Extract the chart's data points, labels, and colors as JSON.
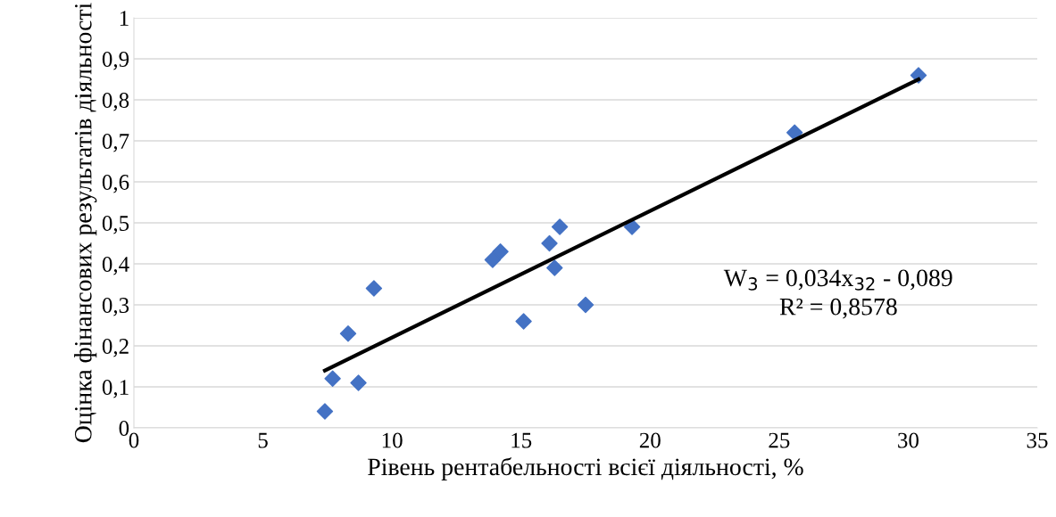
{
  "chart_data": {
    "type": "scatter",
    "xlabel": "Рівень рентабельності всієї діяльності, %",
    "ylabel": "Оцінка фінансових результатів діяльності",
    "series": [
      {
        "color": "#4472c4",
        "marker": "diamond",
        "x": [
          7.4,
          7.7,
          8.3,
          8.7,
          9.3,
          13.9,
          14.2,
          15.1,
          16.1,
          16.3,
          16.5,
          17.5,
          19.3,
          25.6,
          30.4
        ],
        "values": [
          0.04,
          0.12,
          0.23,
          0.11,
          0.34,
          0.41,
          0.43,
          0.26,
          0.45,
          0.39,
          0.49,
          0.3,
          0.49,
          0.72,
          0.86
        ]
      },
      {
        "type": "line",
        "color": "#000000",
        "marker": "none",
        "x": [
          7.4,
          30.4
        ],
        "values": [
          0.14,
          0.85
        ]
      }
    ],
    "annotations": [
      "W$_{3}$ = 0,034x$_{32}$ - 0,089",
      "R² = 0,8578"
    ],
    "xlim": [
      0,
      35
    ],
    "xticks": [
      0,
      5,
      10,
      15,
      20,
      25,
      30,
      35
    ],
    "ylim": [
      0,
      1
    ],
    "yticks": [
      0,
      {
        "value": 0.1,
        "label": "0,1"
      },
      {
        "value": 0.2,
        "label": "0,2"
      },
      {
        "value": 0.3,
        "label": "0,3"
      },
      {
        "value": 0.4,
        "label": "0,4"
      },
      {
        "value": 0.5,
        "label": "0,5"
      },
      {
        "value": 0.6,
        "label": "0,6"
      },
      {
        "value": 0.7,
        "label": "0,7"
      },
      {
        "value": 0.8,
        "label": "0,8"
      },
      {
        "value": 0.9,
        "label": "0,9"
      },
      1
    ],
    "grid": "y",
    "legend": false
  }
}
